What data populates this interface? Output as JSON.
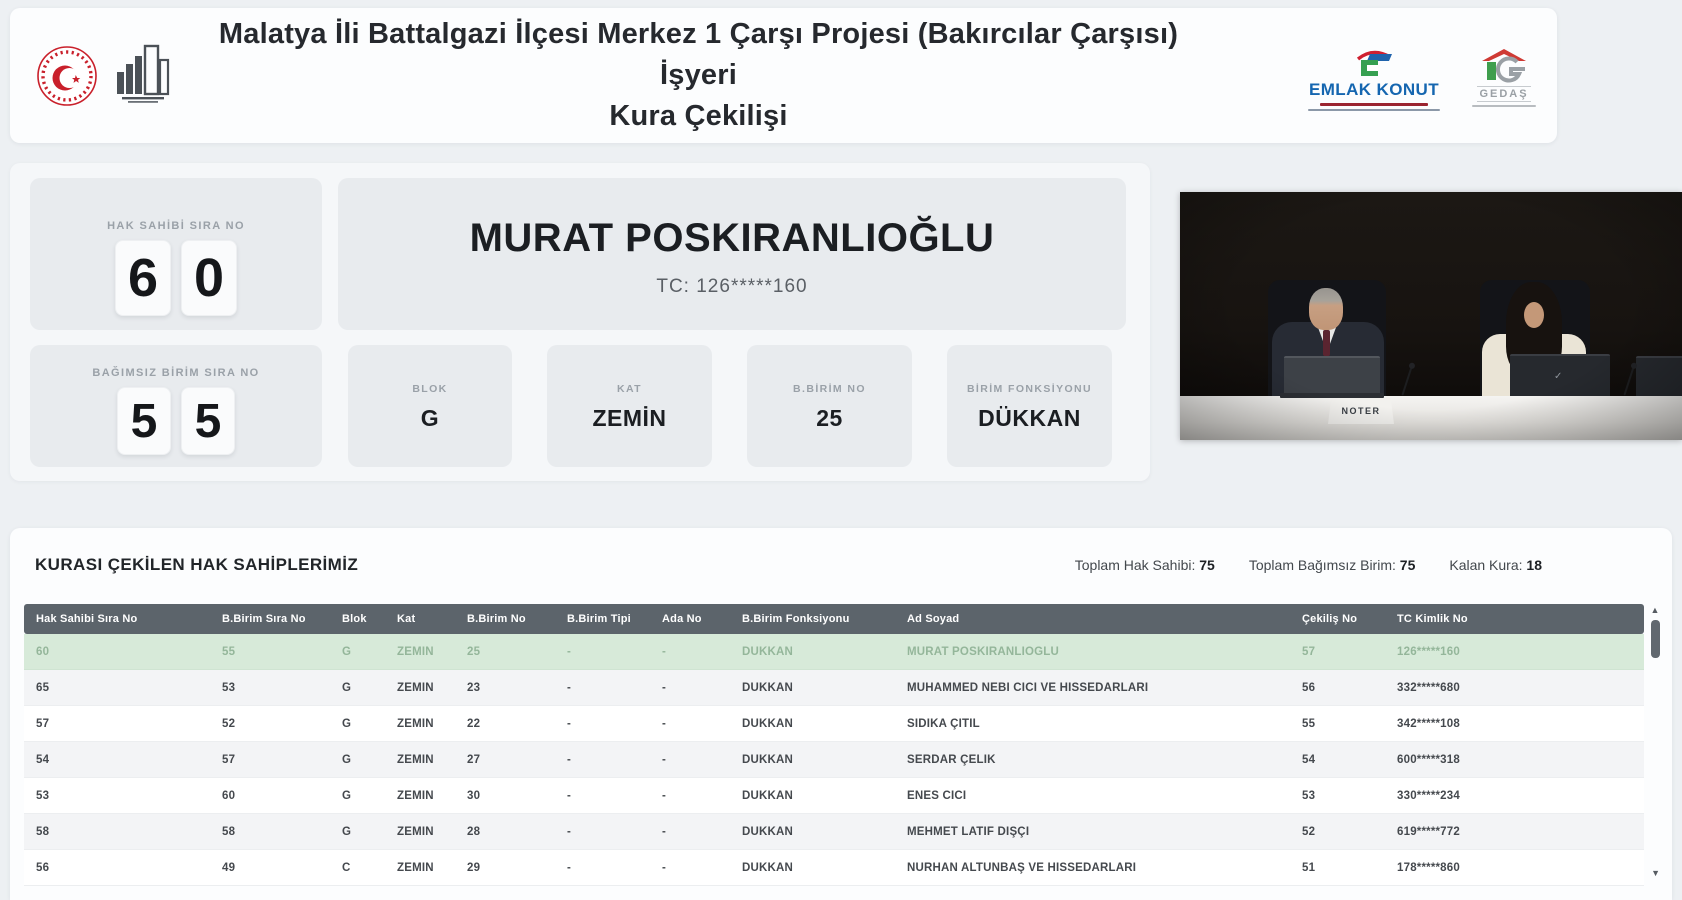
{
  "colors": {
    "page_bg": "#edf0f3",
    "table_header_bg": "#5c646b",
    "highlight_row_bg": "#d7ead9",
    "emlak_blue": "#1566b0",
    "gov_red": "#c9202b"
  },
  "header": {
    "title_line1": "Malatya İli Battalgazi İlçesi Merkez 1 Çarşı Projesi (Bakırcılar Çarşısı) İşyeri",
    "title_line2": "Kura Çekilişi",
    "emlak_konut_label": "EMLAK KONUT",
    "gedas_label": "GEDAŞ"
  },
  "current_draw": {
    "hak_sahibi": {
      "label": "HAK SAHİBİ SIRA NO",
      "digits": [
        "6",
        "0"
      ]
    },
    "name": "MURAT POSKIRANLIOĞLU",
    "tc": "TC: 126*****160",
    "bagimsiz_birim": {
      "label": "BAĞIMSIZ BİRİM SIRA NO",
      "digits": [
        "5",
        "5"
      ]
    },
    "attributes": [
      {
        "label": "BLOK",
        "value": "G"
      },
      {
        "label": "KAT",
        "value": "ZEMİN"
      },
      {
        "label": "B.BİRİM NO",
        "value": "25"
      },
      {
        "label": "BİRİM FONKSİYONU",
        "value": "DÜKKAN"
      }
    ]
  },
  "video": {
    "noter_label": "NOTER"
  },
  "table": {
    "title": "KURASI ÇEKİLEN HAK SAHİPLERİMİZ",
    "totals": [
      {
        "label": "Toplam Hak Sahibi:",
        "value": "75"
      },
      {
        "label": "Toplam Bağımsız Birim:",
        "value": "75"
      },
      {
        "label": "Kalan Kura:",
        "value": "18"
      }
    ],
    "columns": [
      "Hak Sahibi Sıra No",
      "B.Birim Sıra No",
      "Blok",
      "Kat",
      "B.Birim No",
      "B.Birim Tipi",
      "Ada No",
      "B.Birim Fonksiyonu",
      "Ad Soyad",
      "Çekiliş No",
      "TC Kimlik No"
    ],
    "scrollbar": {
      "up": "▲",
      "down": "▼"
    },
    "rows": [
      {
        "highlight": true,
        "cells": [
          "60",
          "55",
          "G",
          "ZEMİN",
          "25",
          "-",
          "-",
          "DÜKKAN",
          "MURAT POSKIRANLIOĞLU",
          "57",
          "126*****160"
        ]
      },
      {
        "highlight": false,
        "cells": [
          "65",
          "53",
          "G",
          "ZEMİN",
          "23",
          "-",
          "-",
          "DÜKKAN",
          "MUHAMMED NEBİ CİCİ VE HİSSEDARLARI",
          "56",
          "332*****680"
        ]
      },
      {
        "highlight": false,
        "cells": [
          "57",
          "52",
          "G",
          "ZEMİN",
          "22",
          "-",
          "-",
          "DÜKKAN",
          "SIDIKA ÇİTİL",
          "55",
          "342*****108"
        ]
      },
      {
        "highlight": false,
        "cells": [
          "54",
          "57",
          "G",
          "ZEMİN",
          "27",
          "-",
          "-",
          "DÜKKAN",
          "SERDAR ÇELİK",
          "54",
          "600*****318"
        ]
      },
      {
        "highlight": false,
        "cells": [
          "53",
          "60",
          "G",
          "ZEMİN",
          "30",
          "-",
          "-",
          "DÜKKAN",
          "ENES CİCİ",
          "53",
          "330*****234"
        ]
      },
      {
        "highlight": false,
        "cells": [
          "58",
          "58",
          "G",
          "ZEMİN",
          "28",
          "-",
          "-",
          "DÜKKAN",
          "MEHMET LATİF DİŞÇİ",
          "52",
          "619*****772"
        ]
      },
      {
        "highlight": false,
        "cells": [
          "56",
          "49",
          "C",
          "ZEMİN",
          "29",
          "-",
          "-",
          "DÜKKAN",
          "NURHAN ALTUNBAŞ VE HİSSEDARLARI",
          "51",
          "178*****860"
        ]
      }
    ]
  }
}
